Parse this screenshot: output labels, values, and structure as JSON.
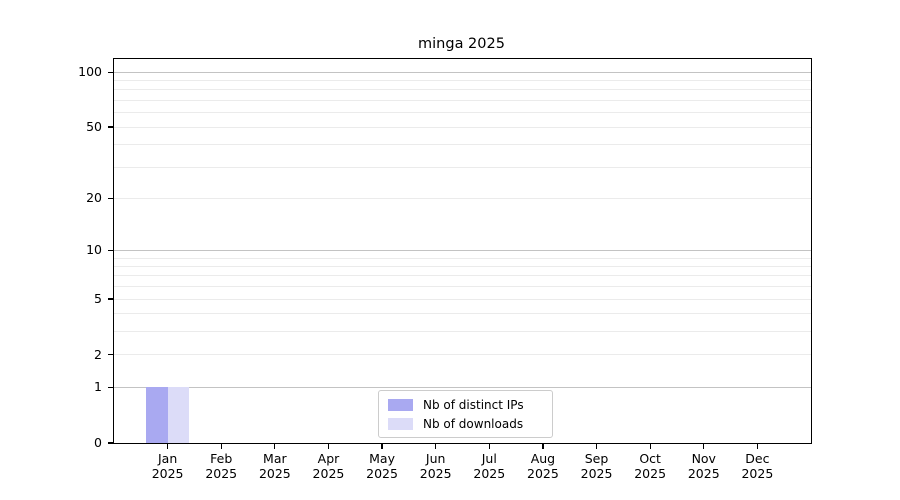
{
  "figure": {
    "title": "minga 2025"
  },
  "chart_data": {
    "type": "bar",
    "title": "minga 2025",
    "categories": [
      "Jan",
      "Feb",
      "Mar",
      "Apr",
      "May",
      "Jun",
      "Jul",
      "Aug",
      "Sep",
      "Oct",
      "Nov",
      "Dec"
    ],
    "category_year": "2025",
    "series": [
      {
        "name": "Nb of distinct IPs",
        "color": "#a9a9f1",
        "values": [
          1,
          0,
          0,
          0,
          0,
          0,
          0,
          0,
          0,
          0,
          0,
          0
        ]
      },
      {
        "name": "Nb of downloads",
        "color": "#dcdcf8",
        "values": [
          1,
          0,
          0,
          0,
          0,
          0,
          0,
          0,
          0,
          0,
          0,
          0
        ]
      }
    ],
    "xlabel": "",
    "ylabel": "",
    "y_scale": "log1p",
    "ylim": [
      0,
      100
    ],
    "y_ticks": [
      0,
      1,
      2,
      5,
      10,
      20,
      50,
      100
    ],
    "y_major_gridlines": [
      1,
      10,
      100
    ],
    "y_minor_gridlines": [
      2,
      3,
      4,
      5,
      6,
      7,
      8,
      9,
      20,
      30,
      40,
      50,
      60,
      70,
      80,
      90
    ],
    "grid": "on",
    "legend": {
      "position": "lower center",
      "entries": [
        "Nb of distinct IPs",
        "Nb of downloads"
      ]
    },
    "colors": {
      "axis": "#000000",
      "grid_major": "#c3c3c3",
      "grid_minor": "#ebebeb",
      "legend_border": "#cccccc",
      "background": "#ffffff"
    }
  }
}
